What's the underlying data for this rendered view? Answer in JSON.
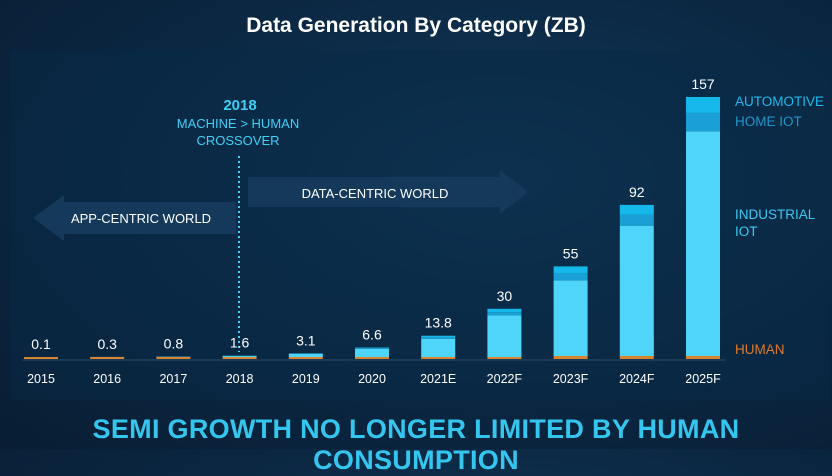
{
  "title": "Data Generation By Category (ZB)",
  "footer": "SEMI GROWTH NO LONGER LIMITED BY HUMAN CONSUMPTION",
  "crossover": {
    "year": "2018",
    "line1": "MACHINE > HUMAN",
    "line2": "CROSSOVER"
  },
  "arrows": {
    "left": "APP-CENTRIC WORLD",
    "right": "DATA-CENTRIC WORLD"
  },
  "colors": {
    "industrial_iot": "#4fd4fa",
    "home_iot": "#1aa0d4",
    "automotive": "#14b8ea",
    "human": "#d9852f",
    "legend_auto": "#21b9ef",
    "legend_home": "#1e96c8",
    "legend_industrial": "#3bc9f2",
    "legend_human": "#e07b2a"
  },
  "chart_data": {
    "type": "bar",
    "stacked": true,
    "categories": [
      "2015",
      "2016",
      "2017",
      "2018",
      "2019",
      "2020",
      "2021E",
      "2022F",
      "2023F",
      "2024F",
      "2025F"
    ],
    "totals": [
      0.1,
      0.3,
      0.8,
      1.6,
      3.1,
      6.6,
      13.8,
      30,
      55,
      92,
      157
    ],
    "total_labels": [
      "0.1",
      "0.3",
      "0.8",
      "1.6",
      "3.1",
      "6.6",
      "13.8",
      "30",
      "55",
      "92",
      "157"
    ],
    "series": [
      {
        "name": "HUMAN",
        "values": [
          0.1,
          0.25,
          0.6,
          0.8,
          0.9,
          0.9,
          1.0,
          1.0,
          1.1,
          1.1,
          1.2
        ]
      },
      {
        "name": "INDUSTRIAL IOT",
        "values": [
          0.0,
          0.05,
          0.2,
          0.7,
          2.0,
          5.0,
          11.0,
          25.0,
          45.5,
          78.4,
          135.2
        ]
      },
      {
        "name": "HOME IOT",
        "values": [
          0.0,
          0.0,
          0.0,
          0.05,
          0.1,
          0.3,
          0.8,
          2.0,
          4.0,
          6.5,
          11.0
        ]
      },
      {
        "name": "AUTOMOTIVE",
        "values": [
          0.0,
          0.0,
          0.0,
          0.05,
          0.1,
          0.4,
          1.0,
          2.0,
          4.4,
          6.0,
          9.6
        ]
      }
    ],
    "legend": [
      "AUTOMOTIVE",
      "HOME IOT",
      "INDUSTRIAL\nIOT",
      "HUMAN"
    ],
    "legend_position": "right",
    "ylim": [
      0,
      157
    ],
    "grid": false
  }
}
